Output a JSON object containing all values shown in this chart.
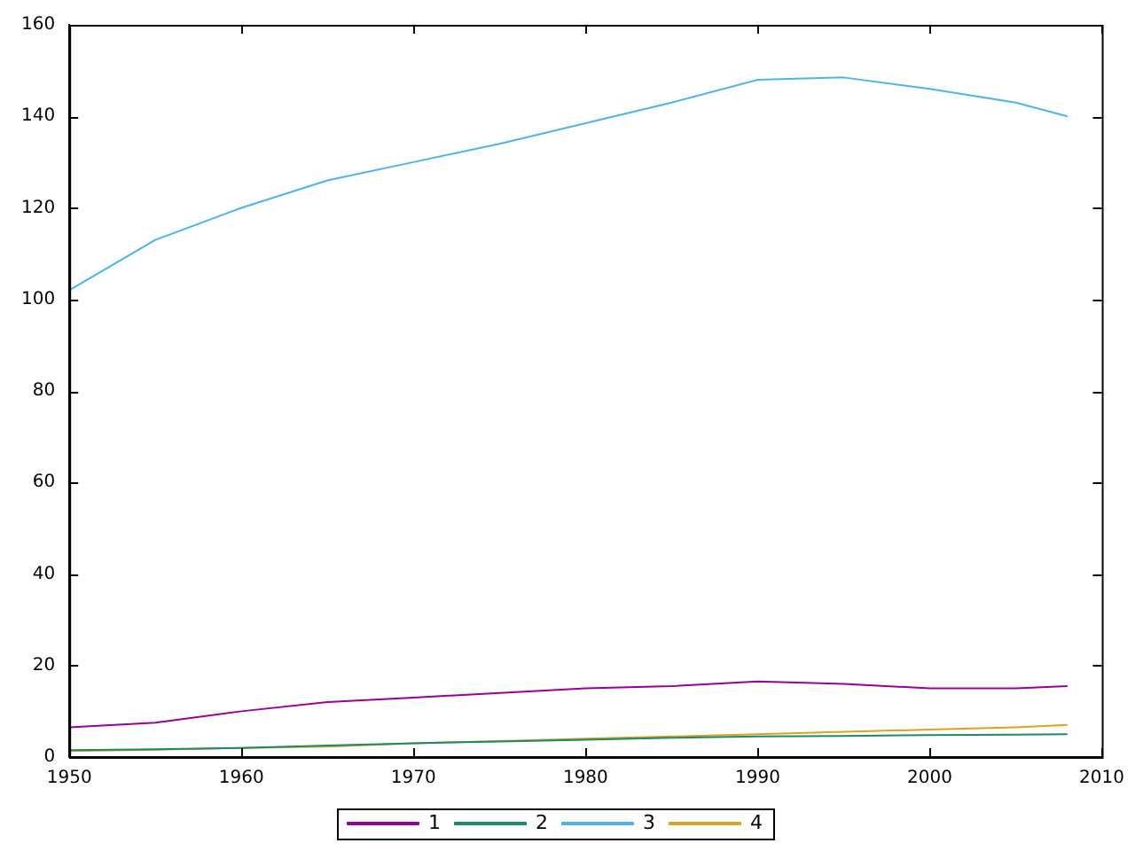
{
  "chart_data": {
    "type": "line",
    "x": [
      1950,
      1955,
      1960,
      1965,
      1970,
      1975,
      1980,
      1985,
      1990,
      1995,
      2000,
      2005,
      2008
    ],
    "series": [
      {
        "name": "1",
        "color": "#990099",
        "values": [
          6.5,
          7.5,
          10,
          12,
          13,
          14,
          15,
          15.5,
          16.5,
          16,
          15,
          15,
          15.5
        ]
      },
      {
        "name": "2",
        "color": "#1a8a6a",
        "values": [
          1.5,
          1.7,
          2,
          2.5,
          3,
          3.4,
          3.8,
          4.2,
          4.5,
          4.6,
          4.8,
          4.9,
          5
        ]
      },
      {
        "name": "3",
        "color": "#4fb3e8",
        "values": [
          102,
          113,
          120,
          126,
          130,
          134,
          138.5,
          143,
          148,
          148.5,
          146,
          143,
          140
        ]
      },
      {
        "name": "4",
        "color": "#d9a520",
        "values": [
          1.3,
          1.6,
          2,
          2.3,
          3,
          3.5,
          4,
          4.5,
          5,
          5.5,
          6,
          6.5,
          7
        ]
      }
    ],
    "xlim": [
      1950,
      2010
    ],
    "xticks": [
      1950,
      1960,
      1970,
      1980,
      1990,
      2000,
      2010
    ],
    "ylim": [
      0,
      160
    ],
    "yticks": [
      0,
      20,
      40,
      60,
      80,
      100,
      120,
      140,
      160
    ],
    "grid": false,
    "legend": "bottom",
    "marker": "none",
    "line_style": "solid"
  }
}
